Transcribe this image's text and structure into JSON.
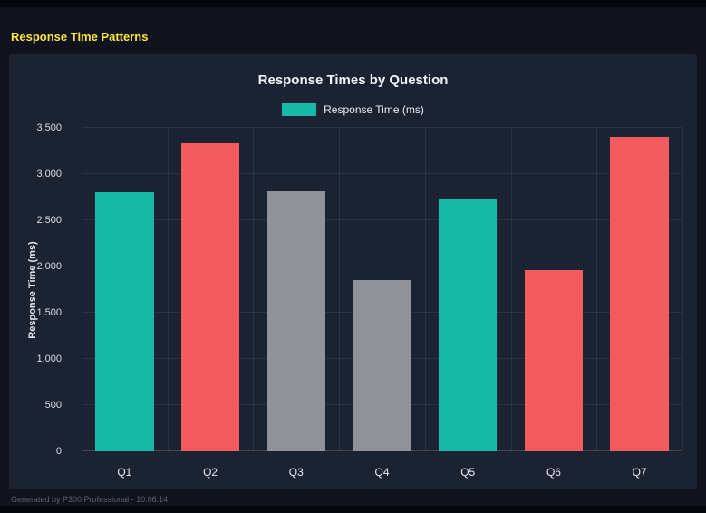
{
  "page": {
    "title": "Response Time Patterns",
    "footer": "Generated by P300 Professional - 10:06:14"
  },
  "colors": {
    "page_bg": "#10131d",
    "panel_bg": "#1b2232",
    "title_yellow": "#ffe53d",
    "teal": "#16b8a6",
    "red": "#f25b60",
    "gray": "#8f9298",
    "axis_text": "#d9dde5",
    "grid": "rgba(255,255,255,0.08)"
  },
  "chart_data": {
    "type": "bar",
    "title": "Response Times by Question",
    "legend": [
      {
        "label": "Response Time (ms)",
        "color": "#16b8a6"
      }
    ],
    "legend_position": "top",
    "categories": [
      "Q1",
      "Q2",
      "Q3",
      "Q4",
      "Q5",
      "Q6",
      "Q7"
    ],
    "values": [
      2800,
      3330,
      2810,
      1850,
      2730,
      1960,
      3400
    ],
    "bar_colors": [
      "#16b8a6",
      "#f25b60",
      "#8f9298",
      "#8f9298",
      "#16b8a6",
      "#f25b60",
      "#f25b60"
    ],
    "xlabel": "",
    "ylabel": "Response Time (ms)",
    "ylim": [
      0,
      3500
    ],
    "ytick_step": 500,
    "grid": true
  }
}
